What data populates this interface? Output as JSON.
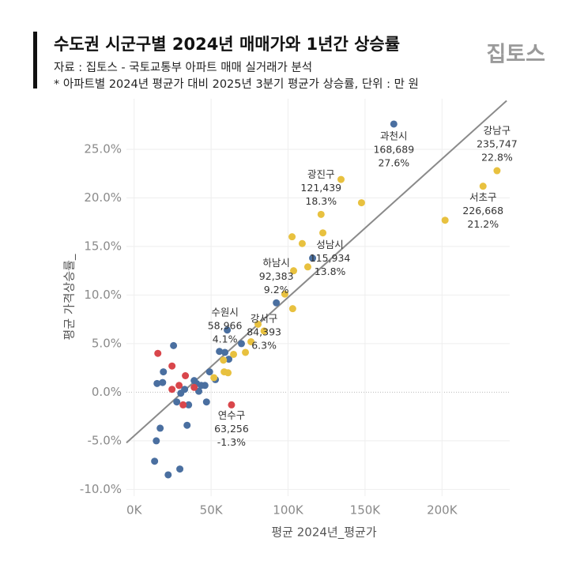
{
  "header": {
    "title": "수도권 시군구별 2024년 매매가와 1년간 상승률",
    "lines": [
      "자료 : 집토스 - 국토교통부 아파트 매매 실거래가 분석",
      "* 아파트별 2024년 평균가 대비 2025년 3분기 평균가 상승률, 단위 : 만 원"
    ],
    "logo": "집토스"
  },
  "chart_data": {
    "type": "scatter",
    "xlabel": "평균 2024년_평균가",
    "ylabel": "평균 가격상승률_",
    "xlim": [
      -5000,
      244000
    ],
    "ylim": [
      -10.7,
      30.2
    ],
    "xticks": [
      {
        "value": 0,
        "label": "0K"
      },
      {
        "value": 50000,
        "label": "50K"
      },
      {
        "value": 100000,
        "label": "100K"
      },
      {
        "value": 150000,
        "label": "150K"
      },
      {
        "value": 200000,
        "label": "200K"
      }
    ],
    "yticks": [
      {
        "value": -10,
        "label": "-10.0%"
      },
      {
        "value": -5,
        "label": "-5.0%"
      },
      {
        "value": 0,
        "label": "0.0%"
      },
      {
        "value": 5,
        "label": "5.0%"
      },
      {
        "value": 10,
        "label": "10.0%"
      },
      {
        "value": 15,
        "label": "15.0%"
      },
      {
        "value": 20,
        "label": "20.0%"
      },
      {
        "value": 25,
        "label": "25.0%"
      }
    ],
    "grid": true,
    "trend_line": {
      "color": "#8a8a8a",
      "x": [
        -5000,
        242000
      ],
      "y": [
        -5.2,
        30.0
      ]
    },
    "series": [
      {
        "color": "#4a6fa0",
        "x": [
          168689,
          115934,
          92383,
          58966,
          14400,
          13300,
          22100,
          29700,
          16900,
          34400,
          14900,
          19000,
          25600,
          18500,
          27700,
          30300,
          32800,
          35400,
          39000,
          42000,
          40500,
          43600,
          46000,
          47000,
          49000,
          52800,
          55400,
          61500,
          60500,
          69700
        ],
        "values": [
          27.6,
          13.8,
          9.2,
          4.1,
          -5.0,
          -7.1,
          -8.5,
          -7.9,
          -3.7,
          -3.4,
          0.9,
          2.1,
          4.8,
          1.0,
          -1.0,
          -0.1,
          0.3,
          -1.3,
          1.2,
          0.1,
          0.9,
          0.7,
          0.7,
          -1.0,
          2.1,
          1.3,
          4.2,
          3.4,
          6.4,
          5.0
        ],
        "labels": [
          "과천시",
          "성남시",
          "하남시",
          "수원시",
          null,
          null,
          null,
          null,
          null,
          null,
          null,
          null,
          null,
          null,
          null,
          null,
          null,
          null,
          null,
          null,
          null,
          null,
          null,
          null,
          null,
          null,
          null,
          null,
          null,
          null
        ],
        "x_labels": [
          "168,689",
          "115,934",
          "92,383",
          "58,966",
          null,
          null,
          null,
          null,
          null,
          null,
          null,
          null,
          null,
          null,
          null,
          null,
          null,
          null,
          null,
          null,
          null,
          null,
          null,
          null,
          null,
          null,
          null,
          null,
          null,
          null
        ],
        "value_labels": [
          "27.6%",
          "13.8%",
          "9.2%",
          "4.1%",
          null,
          null,
          null,
          null,
          null,
          null,
          null,
          null,
          null,
          null,
          null,
          null,
          null,
          null,
          null,
          null,
          null,
          null,
          null,
          null,
          null,
          null,
          null,
          null,
          null,
          null
        ]
      },
      {
        "color": "#e8c13f",
        "x": [
          235747,
          226668,
          121439,
          84393,
          134400,
          147700,
          102600,
          109200,
          122600,
          112800,
          103600,
          97900,
          103000,
          202000,
          80500,
          75900,
          72300,
          64600,
          58000,
          51800,
          58500,
          61000
        ],
        "values": [
          22.8,
          21.2,
          18.3,
          6.3,
          21.9,
          19.5,
          16.0,
          15.3,
          16.4,
          12.9,
          12.5,
          10.1,
          8.6,
          17.7,
          7.0,
          5.2,
          4.1,
          3.9,
          3.3,
          1.5,
          2.1,
          2.0
        ],
        "labels": [
          "강남구",
          "서초구",
          "광진구",
          "강서구",
          null,
          null,
          null,
          null,
          null,
          null,
          null,
          null,
          null,
          null,
          null,
          null,
          null,
          null,
          null,
          null,
          null,
          null
        ],
        "x_labels": [
          "235,747",
          "226,668",
          "121,439",
          "84,393",
          null,
          null,
          null,
          null,
          null,
          null,
          null,
          null,
          null,
          null,
          null,
          null,
          null,
          null,
          null,
          null,
          null,
          null
        ],
        "value_labels": [
          "22.8%",
          "21.2%",
          "18.3%",
          "6.3%",
          null,
          null,
          null,
          null,
          null,
          null,
          null,
          null,
          null,
          null,
          null,
          null,
          null,
          null,
          null,
          null,
          null,
          null
        ]
      },
      {
        "color": "#d9464b",
        "x": [
          63256,
          15400,
          24600,
          29200,
          33300,
          31800,
          24600,
          39000
        ],
        "values": [
          -1.3,
          4.0,
          2.7,
          0.7,
          1.7,
          -1.3,
          0.3,
          0.5
        ],
        "labels": [
          "연수구",
          null,
          null,
          null,
          null,
          null,
          null,
          null
        ],
        "x_labels": [
          "63,256",
          null,
          null,
          null,
          null,
          null,
          null,
          null
        ],
        "value_labels": [
          "-1.3%",
          null,
          null,
          null,
          null,
          null,
          null,
          null
        ]
      }
    ]
  }
}
